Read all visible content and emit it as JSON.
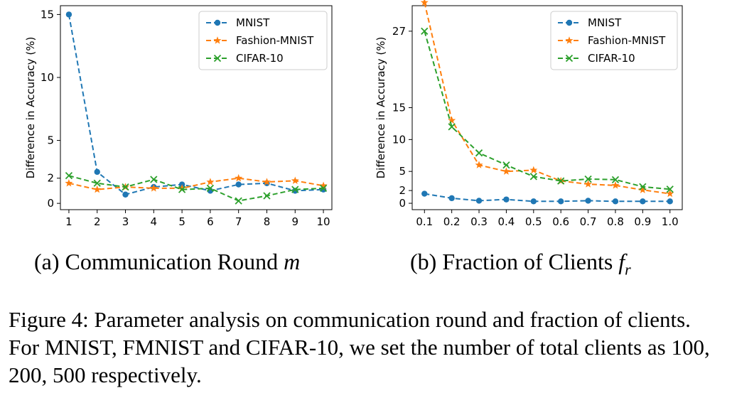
{
  "subcaptions": [
    {
      "text": "(a) Communication Round ",
      "symbol": "m",
      "sub": ""
    },
    {
      "text": "(b) Fraction of Clients ",
      "symbol": "f",
      "sub": "r"
    }
  ],
  "caption": "Figure 4: Parameter analysis on communication round and fraction of clients. For MNIST, FMNIST and CIFAR-10, we set the number of total clients as 100, 200, 500 respectively.",
  "colors": {
    "MNIST": "#1f77b4",
    "Fashion-MNIST": "#ff7f0e",
    "CIFAR-10": "#2ca02c"
  },
  "chart_data": [
    {
      "type": "line",
      "title": "",
      "xlabel": "",
      "ylabel": "Difference in Accuracy (%)",
      "x": [
        1,
        2,
        3,
        4,
        5,
        6,
        7,
        8,
        9,
        10
      ],
      "xticks": [
        "1",
        "2",
        "3",
        "4",
        "5",
        "6",
        "7",
        "8",
        "9",
        "10"
      ],
      "yticks": [
        0,
        2,
        5,
        10,
        15
      ],
      "xlim": [
        0.7,
        10.3
      ],
      "ylim": [
        -0.5,
        15.7
      ],
      "grid": false,
      "legend": "top-right",
      "series": [
        {
          "name": "MNIST",
          "marker": "circle",
          "values": [
            15.0,
            2.5,
            0.7,
            1.3,
            1.5,
            1.0,
            1.5,
            1.6,
            1.0,
            1.1
          ]
        },
        {
          "name": "Fashion-MNIST",
          "marker": "star",
          "values": [
            1.6,
            1.1,
            1.3,
            1.2,
            1.2,
            1.7,
            2.0,
            1.7,
            1.8,
            1.4
          ]
        },
        {
          "name": "CIFAR-10",
          "marker": "x",
          "values": [
            2.2,
            1.6,
            1.3,
            1.9,
            1.1,
            1.2,
            0.2,
            0.6,
            1.1,
            1.2
          ]
        }
      ]
    },
    {
      "type": "line",
      "title": "",
      "xlabel": "",
      "ylabel": "Difference in Accuracy (%)",
      "x": [
        0.1,
        0.2,
        0.3,
        0.4,
        0.5,
        0.6,
        0.7,
        0.8,
        0.9,
        1.0
      ],
      "xticks": [
        "0.1",
        "0.2",
        "0.3",
        "0.4",
        "0.5",
        "0.6",
        "0.7",
        "0.8",
        "0.9",
        "1.0"
      ],
      "yticks": [
        0,
        2,
        5,
        10,
        15,
        27
      ],
      "xlim": [
        0.055,
        1.045
      ],
      "ylim": [
        -1.0,
        31.0
      ],
      "grid": false,
      "legend": "top-right",
      "series": [
        {
          "name": "MNIST",
          "marker": "circle",
          "values": [
            1.5,
            0.8,
            0.4,
            0.6,
            0.3,
            0.3,
            0.4,
            0.3,
            0.3,
            0.3
          ]
        },
        {
          "name": "Fashion-MNIST",
          "marker": "star",
          "values": [
            31.5,
            13.0,
            6.0,
            5.0,
            5.2,
            3.5,
            3.0,
            2.8,
            2.1,
            1.5
          ]
        },
        {
          "name": "CIFAR-10",
          "marker": "x",
          "values": [
            27.0,
            12.0,
            7.9,
            6.0,
            4.2,
            3.5,
            3.8,
            3.7,
            2.6,
            2.2
          ]
        }
      ]
    }
  ]
}
